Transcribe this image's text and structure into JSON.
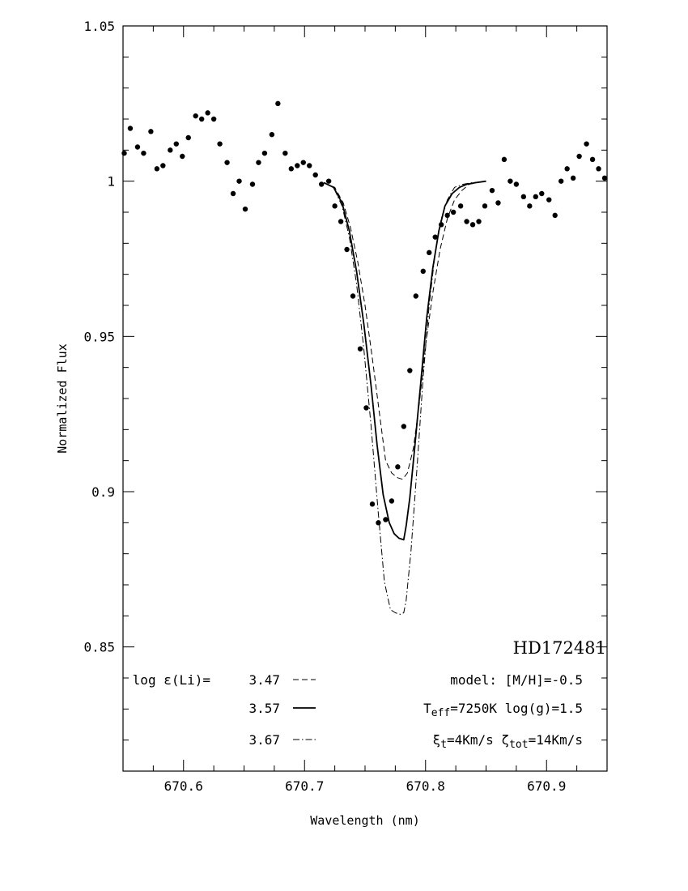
{
  "chart_data": {
    "type": "line",
    "xlabel": "Wavelength (nm)",
    "ylabel": "Normalized Flux",
    "xlim": [
      670.55,
      670.95
    ],
    "ylim": [
      0.81,
      1.05
    ],
    "x_ticks": [
      {
        "value": 670.6,
        "label": "670.6"
      },
      {
        "value": 670.7,
        "label": "670.7"
      },
      {
        "value": 670.8,
        "label": "670.8"
      },
      {
        "value": 670.9,
        "label": "670.9"
      }
    ],
    "y_ticks": [
      {
        "value": 0.85,
        "label": "0.85"
      },
      {
        "value": 0.9,
        "label": "0.9"
      },
      {
        "value": 0.95,
        "label": "0.95"
      },
      {
        "value": 1.0,
        "label": "1"
      },
      {
        "value": 1.05,
        "label": "1.05"
      }
    ],
    "grid": false,
    "star_name": "HD172481",
    "legend": {
      "abundance_prefix": "log ε(Li)=",
      "entries": [
        {
          "label": "3.47",
          "style": "dashed"
        },
        {
          "label": "3.57",
          "style": "solid"
        },
        {
          "label": "3.67",
          "style": "dashdot"
        }
      ],
      "model_lines": [
        "model: [M/H]=-0.5",
        "Teff=7250K log(g)=1.5",
        "ξt=4Km/s ζtot=14Km/s"
      ]
    },
    "observed_points": {
      "name": "observed",
      "x": [
        670.551,
        670.556,
        670.562,
        670.567,
        670.573,
        670.578,
        670.583,
        670.589,
        670.594,
        670.599,
        670.604,
        670.61,
        670.615,
        670.62,
        670.625,
        670.63,
        670.636,
        670.641,
        670.646,
        670.651,
        670.657,
        670.662,
        670.667,
        670.673,
        670.678,
        670.684,
        670.689,
        670.694,
        670.699,
        670.704,
        670.709,
        670.714,
        670.72,
        670.725,
        670.73,
        670.735,
        670.74,
        670.746,
        670.751,
        670.756,
        670.761,
        670.767,
        670.772,
        670.777,
        670.782,
        670.787,
        670.792,
        670.798,
        670.803,
        670.808,
        670.813,
        670.818,
        670.823,
        670.829,
        670.834,
        670.839,
        670.844,
        670.849,
        670.855,
        670.86,
        670.865,
        670.87,
        670.875,
        670.881,
        670.886,
        670.891,
        670.896,
        670.902,
        670.907,
        670.912,
        670.917,
        670.922,
        670.927,
        670.933,
        670.938,
        670.943,
        670.948
      ],
      "y": [
        1.009,
        1.017,
        1.011,
        1.009,
        1.016,
        1.004,
        1.005,
        1.01,
        1.012,
        1.008,
        1.014,
        1.021,
        1.02,
        1.022,
        1.02,
        1.012,
        1.006,
        0.996,
        1.0,
        0.991,
        0.999,
        1.006,
        1.009,
        1.015,
        1.025,
        1.009,
        1.004,
        1.005,
        1.006,
        1.005,
        1.002,
        0.999,
        1.0,
        0.992,
        0.987,
        0.978,
        0.963,
        0.946,
        0.927,
        0.896,
        0.89,
        0.891,
        0.897,
        0.908,
        0.921,
        0.939,
        0.963,
        0.971,
        0.977,
        0.982,
        0.986,
        0.989,
        0.99,
        0.992,
        0.987,
        0.986,
        0.987,
        0.992,
        0.997,
        0.993,
        1.007,
        1.0,
        0.999,
        0.995,
        0.992,
        0.995,
        0.996,
        0.994,
        0.989,
        1.0,
        1.004,
        1.001,
        1.008,
        1.012,
        1.007,
        1.004,
        1.001
      ]
    },
    "series": [
      {
        "name": "3.47",
        "style": "dashed",
        "x": [
          670.716,
          670.725,
          670.732,
          670.738,
          670.744,
          670.75,
          670.756,
          670.762,
          670.767,
          670.772,
          670.777,
          670.781,
          670.785,
          670.79,
          670.795,
          670.8,
          670.806,
          670.812,
          670.818,
          670.824,
          670.83,
          670.836,
          670.842,
          670.85
        ],
        "y": [
          0.9995,
          0.998,
          0.993,
          0.985,
          0.974,
          0.96,
          0.943,
          0.925,
          0.91,
          0.906,
          0.9045,
          0.904,
          0.906,
          0.914,
          0.929,
          0.947,
          0.964,
          0.978,
          0.988,
          0.994,
          0.997,
          0.999,
          0.9995,
          1.0
        ]
      },
      {
        "name": "3.57",
        "style": "solid",
        "x": [
          670.716,
          670.724,
          670.731,
          670.737,
          670.743,
          670.749,
          670.755,
          670.76,
          670.765,
          670.77,
          670.774,
          670.778,
          670.782,
          670.784,
          670.787,
          670.791,
          670.796,
          670.801,
          670.806,
          670.811,
          670.816,
          670.822,
          670.828,
          670.834,
          670.841,
          670.85
        ],
        "y": [
          0.9995,
          0.998,
          0.993,
          0.984,
          0.971,
          0.954,
          0.934,
          0.915,
          0.899,
          0.89,
          0.8865,
          0.885,
          0.8845,
          0.889,
          0.898,
          0.914,
          0.935,
          0.956,
          0.972,
          0.984,
          0.992,
          0.996,
          0.998,
          0.999,
          0.9995,
          1.0
        ]
      },
      {
        "name": "3.67",
        "style": "dashdot",
        "x": [
          670.716,
          670.724,
          670.731,
          670.737,
          670.743,
          670.749,
          670.755,
          670.761,
          670.766,
          670.771,
          670.775,
          670.779,
          670.782,
          670.784,
          670.788,
          670.793,
          670.798,
          670.803,
          670.808,
          670.813,
          670.818,
          670.824,
          670.831,
          670.838,
          670.85
        ],
        "y": [
          0.9995,
          0.998,
          0.992,
          0.982,
          0.967,
          0.946,
          0.921,
          0.893,
          0.871,
          0.862,
          0.861,
          0.8605,
          0.861,
          0.865,
          0.881,
          0.908,
          0.937,
          0.96,
          0.977,
          0.988,
          0.994,
          0.998,
          0.999,
          0.9995,
          1.0
        ]
      }
    ]
  }
}
